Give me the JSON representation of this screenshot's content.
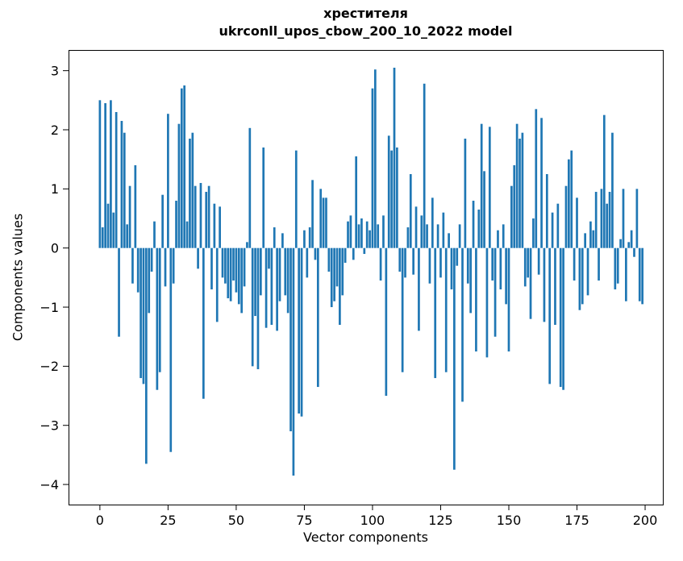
{
  "figure": {
    "title_line1": "хрестителя",
    "title_line2": "ukrconll_upos_cbow_200_10_2022 model",
    "xlabel": "Vector components",
    "ylabel": "Components values"
  },
  "chart_data": {
    "type": "bar",
    "title": "хрестителя — ukrconll_upos_cbow_200_10_2022 model",
    "xlabel": "Vector components",
    "ylabel": "Components values",
    "bar_color": "#1f77b4",
    "spine_color": "#000000",
    "bar_width": 0.8,
    "x_start": 0,
    "xlim": [
      -11.5,
      206.5
    ],
    "ylim": [
      -4.34,
      3.35
    ],
    "xticks": [
      0,
      25,
      50,
      75,
      100,
      125,
      150,
      175,
      200
    ],
    "yticks": [
      -4,
      -3,
      -2,
      -1,
      0,
      1,
      2,
      3
    ],
    "grid": false,
    "legend": false,
    "values": [
      2.5,
      0.35,
      2.45,
      0.75,
      2.5,
      0.6,
      2.3,
      -1.5,
      2.15,
      1.95,
      0.4,
      1.05,
      -0.6,
      1.4,
      -0.75,
      -2.2,
      -2.3,
      -3.65,
      -1.1,
      -0.4,
      0.45,
      -2.4,
      -2.1,
      0.9,
      -0.65,
      2.27,
      -3.45,
      -0.6,
      0.8,
      2.1,
      2.7,
      2.75,
      0.45,
      1.85,
      1.95,
      1.05,
      -0.35,
      1.1,
      -2.55,
      0.95,
      1.05,
      -0.7,
      0.75,
      -1.25,
      0.7,
      -0.5,
      -0.6,
      -0.85,
      -0.9,
      -0.55,
      -0.75,
      -0.95,
      -1.1,
      -0.65,
      0.1,
      2.03,
      -2.0,
      -1.15,
      -2.05,
      -0.8,
      1.7,
      -1.35,
      -0.35,
      -1.3,
      0.35,
      -1.4,
      -0.9,
      0.25,
      -0.8,
      -1.1,
      -3.1,
      -3.85,
      1.65,
      -2.8,
      -2.85,
      0.3,
      -0.5,
      0.35,
      1.15,
      -0.2,
      -2.35,
      1.0,
      0.85,
      0.85,
      -0.4,
      -1.0,
      -0.9,
      -0.65,
      -1.3,
      -0.8,
      -0.25,
      0.45,
      0.55,
      -0.2,
      1.55,
      0.4,
      0.5,
      -0.1,
      0.45,
      0.3,
      2.7,
      3.02,
      0.4,
      -0.55,
      0.55,
      -2.5,
      1.9,
      1.65,
      3.05,
      1.7,
      -0.4,
      -2.1,
      -0.5,
      0.35,
      1.25,
      -0.45,
      0.7,
      -1.4,
      0.55,
      2.78,
      0.4,
      -0.6,
      0.85,
      -2.2,
      0.4,
      -0.5,
      0.6,
      -2.1,
      0.25,
      -0.7,
      -3.75,
      -0.3,
      0.4,
      -2.6,
      1.85,
      -0.6,
      -1.1,
      0.8,
      -1.75,
      0.65,
      2.1,
      1.3,
      -1.85,
      2.05,
      -0.55,
      -1.5,
      0.3,
      -0.7,
      0.4,
      -0.95,
      -1.75,
      1.05,
      1.4,
      2.1,
      1.85,
      1.95,
      -0.65,
      -0.5,
      -1.2,
      0.5,
      2.35,
      -0.45,
      2.2,
      -1.25,
      1.25,
      -2.3,
      0.6,
      -1.3,
      0.75,
      -2.35,
      -2.4,
      1.05,
      1.5,
      1.65,
      -0.55,
      0.85,
      -1.05,
      -0.95,
      0.25,
      -0.8,
      0.45,
      0.3,
      0.95,
      -0.55,
      1.0,
      2.25,
      0.75,
      0.95,
      1.95,
      -0.7,
      -0.6,
      0.15,
      1.0,
      -0.9,
      0.1,
      0.3,
      -0.15,
      1.0,
      -0.9,
      -0.95
    ]
  }
}
